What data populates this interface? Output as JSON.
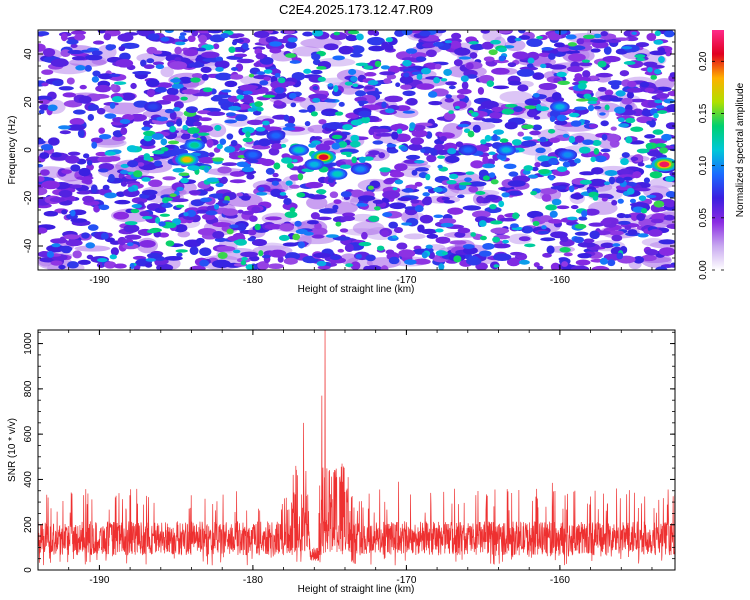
{
  "title": "C2E4.2025.173.12.47.R09",
  "colors": {
    "snr_line": "#ee3030",
    "colormap": [
      "#ffffff",
      "#c8a8f0",
      "#8a2be2",
      "#3a1ee0",
      "#1a6cff",
      "#00c8d8",
      "#00d070",
      "#b0e000",
      "#ffb000",
      "#e00020",
      "#ff2a8a"
    ]
  },
  "chart_data": [
    {
      "type": "heatmap",
      "xlabel": "Height of straight line (km)",
      "ylabel": "Frequency (Hz)",
      "xlim": [
        -194,
        -152.5
      ],
      "ylim": [
        -50,
        50
      ],
      "x_ticks": [
        -190,
        -180,
        -170,
        -160
      ],
      "x_tick_labels": [
        "-190",
        "-180",
        "-170",
        "-160"
      ],
      "y_ticks": [
        -40,
        -20,
        0,
        20,
        40
      ],
      "y_tick_labels": [
        "-40",
        "-20",
        "0",
        "20",
        "40"
      ],
      "colorbar": {
        "label": "Normalized spectral amplitude",
        "range": [
          0,
          0.23
        ],
        "ticks": [
          0,
          0.05,
          0.1,
          0.15,
          0.2
        ],
        "tick_labels": [
          "0.00",
          "0.05",
          "0.10",
          "0.15",
          "0.20"
        ]
      },
      "hot_spots": [
        {
          "x": -175.4,
          "y": -3,
          "value": 0.21
        },
        {
          "x": -153.2,
          "y": -6,
          "value": 0.22
        },
        {
          "x": -184.3,
          "y": -4,
          "value": 0.18
        },
        {
          "x": -183.8,
          "y": 2,
          "value": 0.13
        },
        {
          "x": -177.0,
          "y": 0,
          "value": 0.12
        },
        {
          "x": -176.0,
          "y": -6,
          "value": 0.11
        },
        {
          "x": -174.5,
          "y": -10,
          "value": 0.12
        },
        {
          "x": -173.0,
          "y": -8,
          "value": 0.1
        },
        {
          "x": -163.5,
          "y": 0,
          "value": 0.11
        },
        {
          "x": -160.0,
          "y": 18,
          "value": 0.11
        },
        {
          "x": -159.5,
          "y": -2,
          "value": 0.1
        },
        {
          "x": -166.0,
          "y": 0,
          "value": 0.09
        },
        {
          "x": -180.0,
          "y": -2,
          "value": 0.09
        },
        {
          "x": -178.5,
          "y": 6,
          "value": 0.09
        },
        {
          "x": -186.5,
          "y": 18,
          "value": 0.08
        }
      ]
    },
    {
      "type": "line",
      "xlabel": "Height of straight line (km)",
      "ylabel": "SNR (10 * v/v)",
      "xlim": [
        -194,
        -152.5
      ],
      "ylim": [
        0,
        1060
      ],
      "x_ticks": [
        -190,
        -180,
        -170,
        -160
      ],
      "x_tick_labels": [
        "-190",
        "-180",
        "-170",
        "-160"
      ],
      "y_ticks": [
        0,
        200,
        400,
        600,
        800,
        1000
      ],
      "y_tick_labels": [
        "0",
        "200",
        "400",
        "600",
        "800",
        "1000"
      ],
      "baseline_mean": 140,
      "baseline_peak_range": [
        250,
        360
      ],
      "peaks": [
        {
          "x": -175.3,
          "y": 1060
        },
        {
          "x": -175.5,
          "y": 770
        },
        {
          "x": -176.7,
          "y": 650
        },
        {
          "x": -177.2,
          "y": 460
        },
        {
          "x": -174.2,
          "y": 470
        },
        {
          "x": -173.8,
          "y": 410
        },
        {
          "x": -170.5,
          "y": 390
        },
        {
          "x": -160.5,
          "y": 385
        },
        {
          "x": -156.3,
          "y": 360
        }
      ],
      "dip": {
        "x_range": [
          -176.3,
          -175.7
        ],
        "y": 40
      }
    }
  ]
}
